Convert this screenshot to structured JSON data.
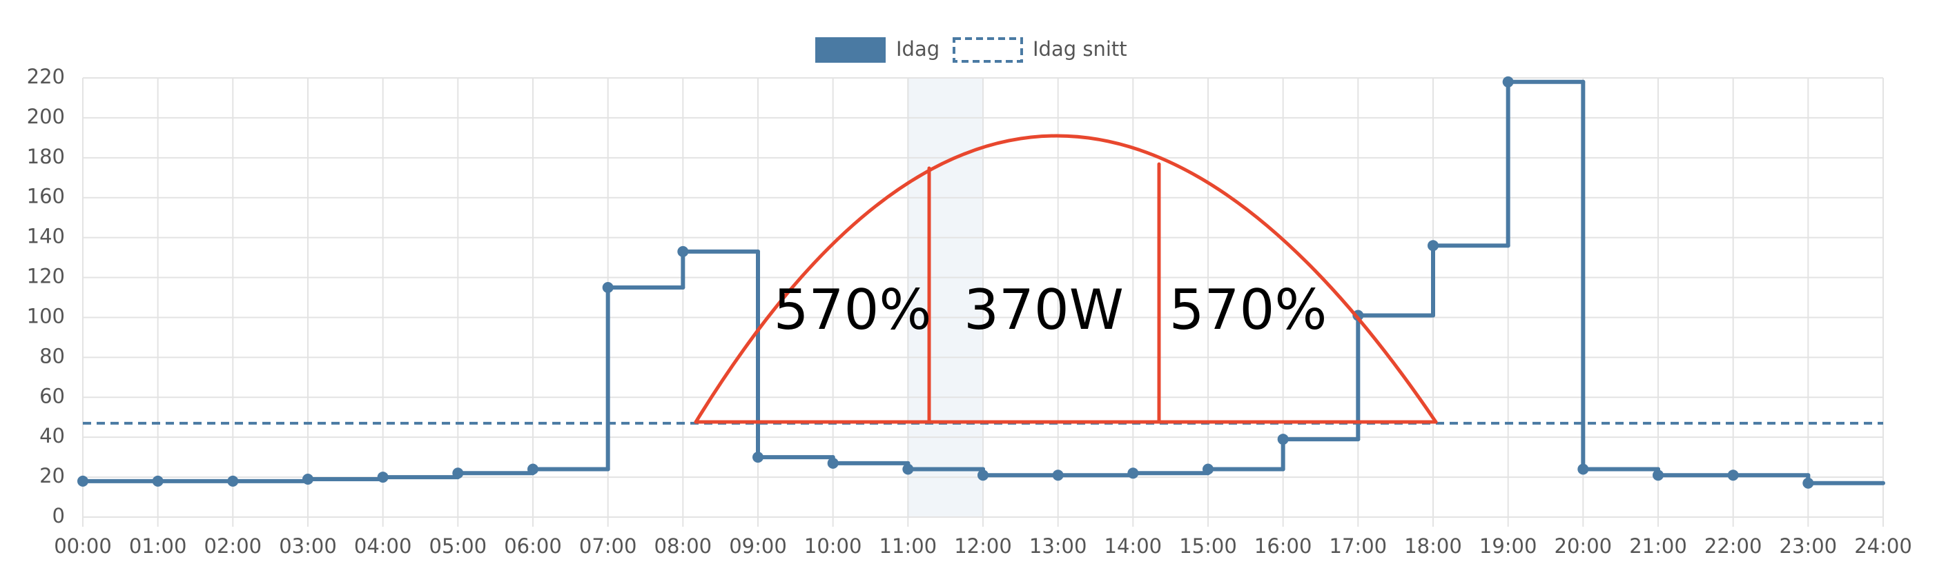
{
  "chart_data": {
    "type": "step-line",
    "legend": "top",
    "x": [
      0,
      1,
      2,
      3,
      4,
      5,
      6,
      7,
      8,
      9,
      10,
      11,
      12,
      13,
      14,
      15,
      16,
      17,
      18,
      19,
      20,
      21,
      22,
      23
    ],
    "series": [
      {
        "name": "Idag",
        "color": "#4a7aa3",
        "values": [
          18,
          18,
          18,
          19,
          20,
          22,
          24,
          115,
          133,
          30,
          27,
          24,
          21,
          21,
          22,
          24,
          39,
          101,
          136,
          218,
          24,
          21,
          21,
          17
        ]
      },
      {
        "name": "Idag snitt",
        "color": "#4a7aa3",
        "dashed": true,
        "value": 47
      }
    ],
    "xlim": [
      0,
      24
    ],
    "xticks": [
      {
        "value": 0,
        "label": "00:00"
      },
      {
        "value": 1,
        "label": "01:00"
      },
      {
        "value": 2,
        "label": "02:00"
      },
      {
        "value": 3,
        "label": "03:00"
      },
      {
        "value": 4,
        "label": "04:00"
      },
      {
        "value": 5,
        "label": "05:00"
      },
      {
        "value": 6,
        "label": "06:00"
      },
      {
        "value": 7,
        "label": "07:00"
      },
      {
        "value": 8,
        "label": "08:00"
      },
      {
        "value": 9,
        "label": "09:00"
      },
      {
        "value": 10,
        "label": "10:00"
      },
      {
        "value": 11,
        "label": "11:00"
      },
      {
        "value": 12,
        "label": "12:00"
      },
      {
        "value": 13,
        "label": "13:00"
      },
      {
        "value": 14,
        "label": "14:00"
      },
      {
        "value": 15,
        "label": "15:00"
      },
      {
        "value": 16,
        "label": "16:00"
      },
      {
        "value": 17,
        "label": "17:00"
      },
      {
        "value": 18,
        "label": "18:00"
      },
      {
        "value": 19,
        "label": "19:00"
      },
      {
        "value": 20,
        "label": "20:00"
      },
      {
        "value": 21,
        "label": "21:00"
      },
      {
        "value": 22,
        "label": "22:00"
      },
      {
        "value": 23,
        "label": "23:00"
      },
      {
        "value": 24,
        "label": "24:00"
      }
    ],
    "ylim": [
      0,
      220
    ],
    "yticks": [
      0,
      20,
      40,
      60,
      80,
      100,
      120,
      140,
      160,
      180,
      200,
      220
    ],
    "grid": true,
    "highlight": [
      11,
      12
    ],
    "annotations": [
      "570%",
      "370W",
      "570%"
    ],
    "annotation_color": "#e8472e"
  }
}
